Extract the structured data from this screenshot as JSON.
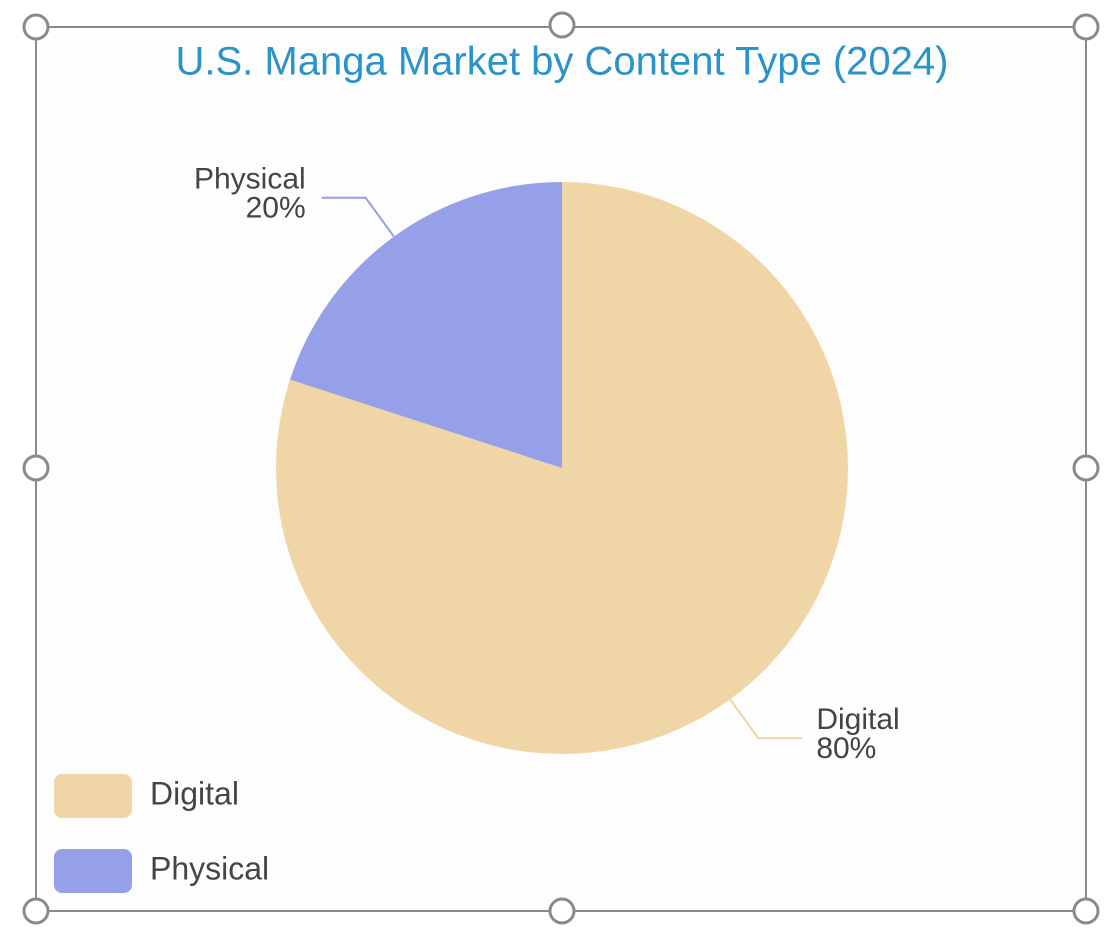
{
  "chart_data": {
    "type": "pie",
    "title": "U.S. Manga Market by Content Type (2024)",
    "categories": [
      "Digital",
      "Physical"
    ],
    "values": [
      80,
      20
    ],
    "value_labels": [
      "80%",
      "20%"
    ],
    "colors": [
      "#f0d6a6",
      "#96a0e8"
    ],
    "legend": "bottom-left"
  }
}
